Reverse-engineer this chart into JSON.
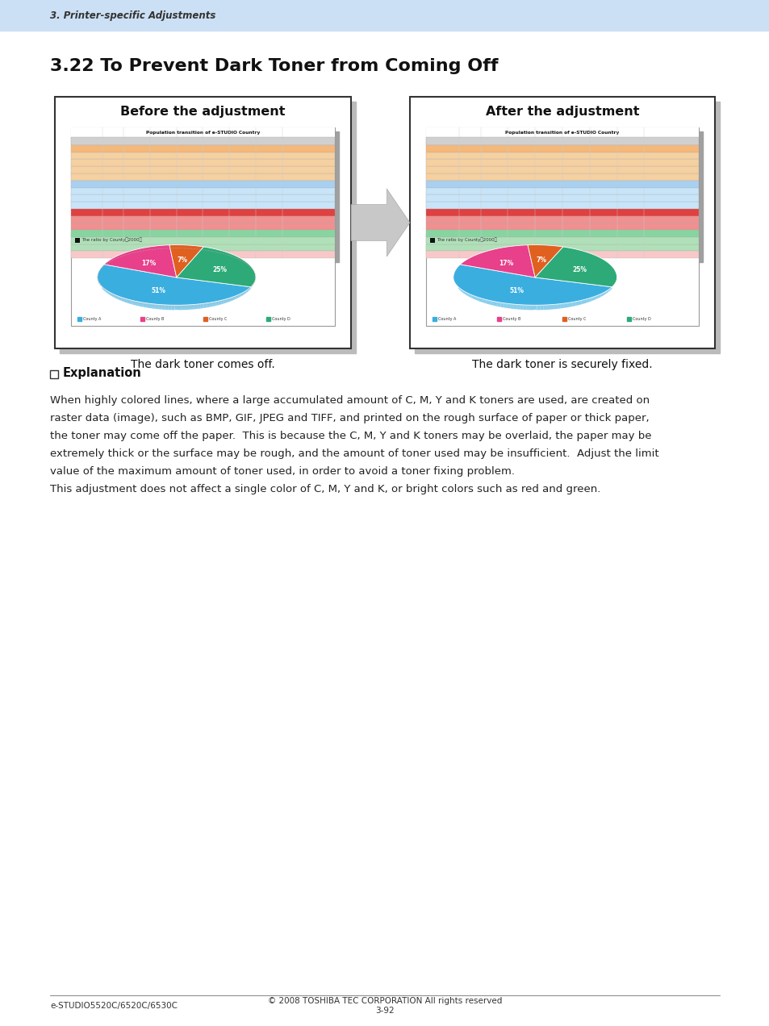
{
  "page_bg": "#ffffff",
  "header_bg": "#cce0f5",
  "header_text": "3. Printer-specific Adjustments",
  "header_text_color": "#333333",
  "title": "3.22 To Prevent Dark Toner from Coming Off",
  "before_label": "Before the adjustment",
  "after_label": "After the adjustment",
  "caption_before": "The dark toner comes off.",
  "caption_after": "The dark toner is securely fixed.",
  "explanation_title": "Explanation",
  "explanation_lines": [
    "When highly colored lines, where a large accumulated amount of C, M, Y and K toners are used, are created on",
    "raster data (image), such as BMP, GIF, JPEG and TIFF, and printed on the rough surface of paper or thick paper,",
    "the toner may come off the paper.  This is because the C, M, Y and K toners may be overlaid, the paper may be",
    "extremely thick or the surface may be rough, and the amount of toner used may be insufficient.  Adjust the limit",
    "value of the maximum amount of toner used, in order to avoid a toner fixing problem.",
    "This adjustment does not affect a single color of C, M, Y and K, or bright colors such as red and green."
  ],
  "footer_left": "e-STUDIO5520C/6520C/6530C",
  "footer_center": "3-92",
  "footer_right": "© 2008 TOSHIBA TEC CORPORATION All rights reserved",
  "pie_colors": [
    "#3baee0",
    "#e8408a",
    "#e06020",
    "#2daa78"
  ],
  "pie_labels_order": [
    "51%",
    "17%",
    "7%",
    "25%"
  ],
  "pie_values_order": [
    51,
    17,
    7,
    25
  ],
  "pie_legend": [
    "County A",
    "County B",
    "County C",
    "County D"
  ],
  "pie_legend_colors": [
    "#3baee0",
    "#e8408a",
    "#e06020",
    "#2daa78"
  ],
  "table_title": "Population transition of e-STUDIO Country",
  "county_a_color": "#f5b87a",
  "county_b_color": "#a8d0f0",
  "county_c_color": "#e04040",
  "county_d_color": "#88d4a0",
  "county_header_color": "#e06020",
  "grand_total_color": "#f8c8c8",
  "table_header_bg": "#d0d0d0",
  "table_shadow_color": "#a0a0a0",
  "arrow_color": "#c8c8c8",
  "arrow_edge_color": "#aaaaaa"
}
